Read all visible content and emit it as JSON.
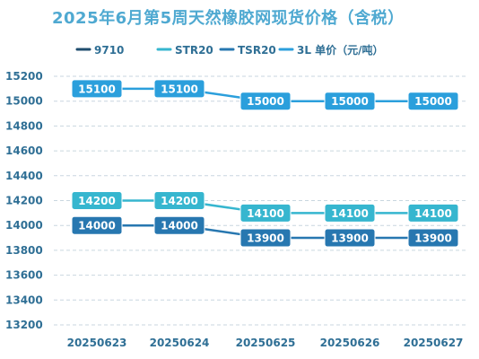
{
  "chart_data": {
    "type": "line",
    "title": "2025年6月第5周天然橡胶网现货价格（含税）",
    "categories": [
      "20250623",
      "20250624",
      "20250625",
      "20250626",
      "20250627"
    ],
    "series": [
      {
        "name": "9710",
        "values": [
          null,
          null,
          null,
          null,
          null
        ],
        "color": "#1f4d6e"
      },
      {
        "name": "STR20",
        "values": [
          14200,
          14200,
          14100,
          14100,
          14100
        ],
        "color": "#36b6cf"
      },
      {
        "name": "TSR20",
        "values": [
          14000,
          14000,
          13900,
          13900,
          13900
        ],
        "color": "#2777b0"
      },
      {
        "name": "3L 单价（元/吨）",
        "values": [
          15100,
          15100,
          15000,
          15000,
          15000
        ],
        "color": "#2b9fdc"
      }
    ],
    "yticks": [
      13200,
      13400,
      13600,
      13800,
      14000,
      14200,
      14400,
      14600,
      14800,
      15000,
      15200
    ],
    "ylim": [
      13200,
      15200
    ],
    "grid": true,
    "legend_position": "top"
  }
}
